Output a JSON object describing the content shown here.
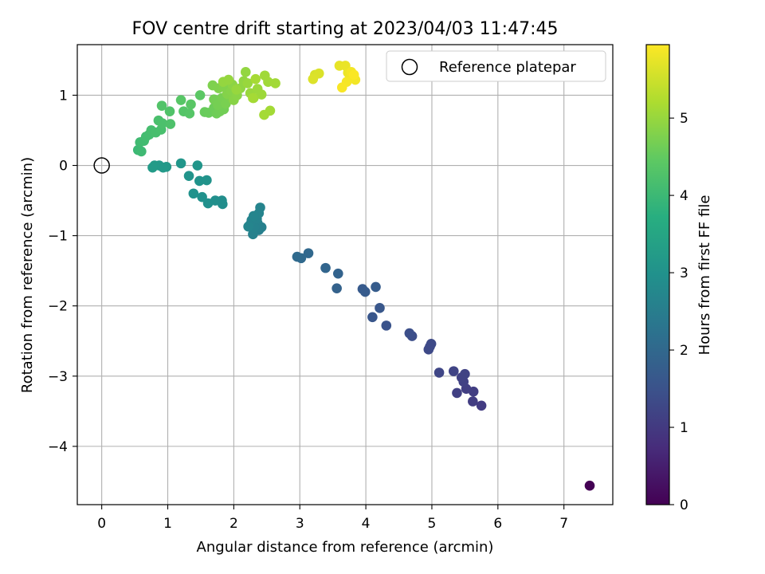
{
  "chart_data": {
    "type": "scatter",
    "title": "FOV centre drift starting at 2023/04/03 11:47:45",
    "xlabel": "Angular distance from reference (arcmin)",
    "ylabel": "Rotation from reference (arcmin)",
    "xlim": [
      -0.37,
      7.74
    ],
    "ylim": [
      -4.83,
      1.72
    ],
    "xticks": [
      "0",
      "1",
      "2",
      "3",
      "4",
      "5",
      "6",
      "7"
    ],
    "yticks": [
      "−4",
      "−3",
      "−2",
      "−1",
      "0",
      "1"
    ],
    "grid": true,
    "legend": {
      "placement": "top-right",
      "entries": [
        {
          "label": "Reference platepar",
          "marker": "open-circle"
        }
      ]
    },
    "reference_point": {
      "x": 0,
      "y": 0
    },
    "colorbar": {
      "label": "Hours from first FF file",
      "colormap": "viridis",
      "range": [
        0,
        5.95
      ],
      "ticks": [
        "0",
        "1",
        "2",
        "3",
        "4",
        "5"
      ]
    },
    "points": [
      [
        7.39,
        -4.56,
        0.0
      ],
      [
        5.75,
        -3.42,
        1.05
      ],
      [
        5.62,
        -3.36,
        1.07
      ],
      [
        5.63,
        -3.22,
        1.09
      ],
      [
        5.52,
        -3.18,
        1.11
      ],
      [
        5.38,
        -3.24,
        1.12
      ],
      [
        5.48,
        -3.08,
        1.14
      ],
      [
        5.45,
        -3.02,
        1.16
      ],
      [
        5.5,
        -2.97,
        1.18
      ],
      [
        5.33,
        -2.93,
        1.2
      ],
      [
        5.11,
        -2.95,
        1.24
      ],
      [
        4.95,
        -2.62,
        1.3
      ],
      [
        4.99,
        -2.54,
        1.32
      ],
      [
        4.97,
        -2.58,
        1.33
      ],
      [
        4.7,
        -2.43,
        1.4
      ],
      [
        4.66,
        -2.39,
        1.42
      ],
      [
        4.31,
        -2.28,
        1.52
      ],
      [
        4.1,
        -2.16,
        1.57
      ],
      [
        4.21,
        -2.03,
        1.6
      ],
      [
        3.95,
        -1.76,
        1.68
      ],
      [
        3.99,
        -1.8,
        1.7
      ],
      [
        4.15,
        -1.73,
        1.72
      ],
      [
        3.56,
        -1.75,
        1.85
      ],
      [
        3.58,
        -1.54,
        1.88
      ],
      [
        3.39,
        -1.46,
        1.92
      ],
      [
        3.13,
        -1.25,
        2.0
      ],
      [
        3.02,
        -1.32,
        2.03
      ],
      [
        2.96,
        -1.3,
        2.05
      ],
      [
        2.38,
        -0.92,
        2.55
      ],
      [
        2.42,
        -0.88,
        2.56
      ],
      [
        2.29,
        -0.98,
        2.58
      ],
      [
        2.36,
        -0.82,
        2.59
      ],
      [
        2.25,
        -0.84,
        2.6
      ],
      [
        2.31,
        -0.88,
        2.62
      ],
      [
        2.27,
        -0.78,
        2.63
      ],
      [
        2.35,
        -0.76,
        2.64
      ],
      [
        2.38,
        -0.68,
        2.66
      ],
      [
        2.4,
        -0.6,
        2.67
      ],
      [
        2.22,
        -0.87,
        2.68
      ],
      [
        2.3,
        -0.72,
        2.69
      ],
      [
        1.82,
        -0.5,
        2.9
      ],
      [
        1.83,
        -0.55,
        2.91
      ],
      [
        1.72,
        -0.5,
        2.93
      ],
      [
        1.61,
        -0.54,
        2.95
      ],
      [
        1.52,
        -0.45,
        2.97
      ],
      [
        1.39,
        -0.4,
        2.99
      ],
      [
        1.48,
        -0.22,
        3.02
      ],
      [
        1.59,
        -0.21,
        3.03
      ],
      [
        1.32,
        -0.15,
        3.05
      ],
      [
        1.45,
        0.0,
        3.07
      ],
      [
        1.2,
        0.03,
        3.1
      ],
      [
        0.98,
        -0.02,
        3.15
      ],
      [
        0.93,
        -0.03,
        3.17
      ],
      [
        0.87,
        0.0,
        3.19
      ],
      [
        0.8,
        0.0,
        3.21
      ],
      [
        0.77,
        -0.03,
        3.23
      ],
      [
        0.55,
        0.22,
        4.0
      ],
      [
        0.6,
        0.2,
        4.03
      ],
      [
        0.58,
        0.33,
        4.06
      ],
      [
        0.64,
        0.35,
        4.08
      ],
      [
        0.67,
        0.41,
        4.1
      ],
      [
        0.72,
        0.44,
        4.12
      ],
      [
        0.75,
        0.5,
        4.14
      ],
      [
        0.82,
        0.47,
        4.16
      ],
      [
        0.9,
        0.51,
        4.18
      ],
      [
        0.86,
        0.64,
        4.2
      ],
      [
        0.92,
        0.6,
        4.22
      ],
      [
        1.04,
        0.59,
        4.25
      ],
      [
        1.03,
        0.77,
        4.28
      ],
      [
        0.91,
        0.85,
        4.3
      ],
      [
        1.24,
        0.77,
        4.33
      ],
      [
        1.33,
        0.74,
        4.35
      ],
      [
        1.2,
        0.93,
        4.37
      ],
      [
        1.35,
        0.87,
        4.39
      ],
      [
        1.49,
        1.0,
        4.42
      ],
      [
        1.56,
        0.76,
        4.55
      ],
      [
        1.62,
        0.75,
        4.57
      ],
      [
        1.7,
        0.82,
        4.59
      ],
      [
        1.74,
        0.74,
        4.61
      ],
      [
        1.79,
        0.77,
        4.63
      ],
      [
        1.85,
        0.8,
        4.65
      ],
      [
        1.7,
        0.94,
        4.67
      ],
      [
        1.76,
        0.86,
        4.68
      ],
      [
        1.82,
        0.96,
        4.7
      ],
      [
        1.88,
        0.88,
        4.72
      ],
      [
        1.93,
        0.99,
        4.74
      ],
      [
        1.68,
        1.14,
        4.76
      ],
      [
        1.77,
        1.1,
        4.78
      ],
      [
        1.85,
        1.12,
        4.8
      ],
      [
        1.9,
        1.02,
        4.82
      ],
      [
        1.96,
        1.06,
        4.84
      ],
      [
        2.0,
        0.93,
        4.86
      ],
      [
        2.05,
        1.0,
        4.88
      ],
      [
        1.98,
        1.15,
        4.9
      ],
      [
        2.1,
        1.1,
        4.92
      ],
      [
        2.15,
        1.2,
        4.94
      ],
      [
        2.18,
        1.33,
        4.96
      ],
      [
        1.84,
        1.19,
        4.97
      ],
      [
        1.92,
        1.22,
        4.98
      ],
      [
        2.04,
        1.08,
        5.0
      ],
      [
        2.21,
        1.17,
        5.01
      ],
      [
        2.25,
        1.03,
        5.02
      ],
      [
        2.3,
        0.96,
        5.03
      ],
      [
        2.36,
        1.09,
        5.05
      ],
      [
        2.42,
        1.01,
        5.06
      ],
      [
        2.47,
        1.28,
        5.08
      ],
      [
        2.52,
        1.19,
        5.09
      ],
      [
        2.63,
        1.17,
        5.1
      ],
      [
        2.55,
        0.78,
        5.11
      ],
      [
        2.46,
        0.72,
        5.12
      ],
      [
        2.29,
        0.96,
        5.13
      ],
      [
        2.33,
        1.23,
        5.14
      ],
      [
        3.23,
        1.29,
        5.6
      ],
      [
        3.29,
        1.31,
        5.62
      ],
      [
        3.2,
        1.23,
        5.64
      ],
      [
        3.6,
        1.42,
        5.75
      ],
      [
        3.69,
        1.42,
        5.77
      ],
      [
        3.73,
        1.32,
        5.79
      ],
      [
        3.76,
        1.25,
        5.81
      ],
      [
        3.8,
        1.27,
        5.83
      ],
      [
        3.84,
        1.22,
        5.85
      ],
      [
        3.78,
        1.33,
        5.86
      ],
      [
        3.71,
        1.19,
        5.88
      ],
      [
        3.64,
        1.11,
        5.9
      ],
      [
        3.82,
        1.29,
        5.92
      ]
    ]
  }
}
